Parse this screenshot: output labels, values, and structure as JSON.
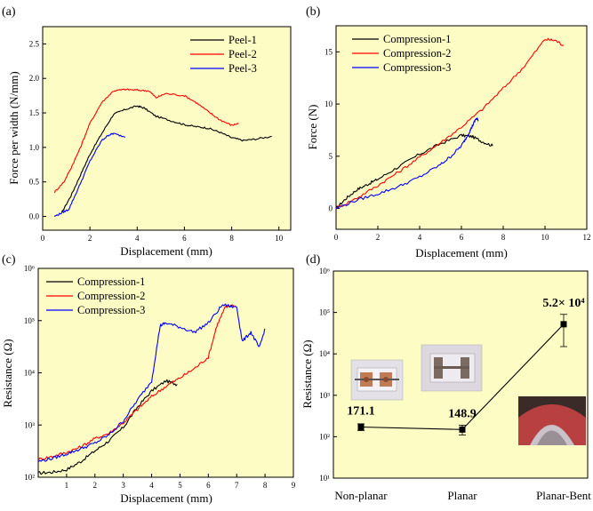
{
  "colors": {
    "panel_bg": "#fcfcc4",
    "black": "#000000",
    "red": "#ff0000",
    "blue": "#0000ff"
  },
  "chart_data": [
    {
      "panel": "(a)",
      "type": "line",
      "xlabel": "Displacement (mm)",
      "ylabel": "Force per width (N/mm)",
      "xlim": [
        0,
        10.5
      ],
      "ylim": [
        -0.2,
        2.75
      ],
      "xticks": [
        0,
        2,
        4,
        6,
        8,
        10
      ],
      "yticks": [
        0.0,
        0.5,
        1.0,
        1.5,
        2.0,
        2.5
      ],
      "ytick_labels": [
        "0.0",
        "0.5",
        "1.0",
        "1.5",
        "2.0",
        "2.5"
      ],
      "legend_position": "top-right",
      "series": [
        {
          "name": "Peel-1",
          "color": "#000000",
          "x": [
            0.8,
            1.2,
            1.6,
            2.0,
            2.5,
            3.0,
            3.5,
            4.0,
            4.3,
            4.8,
            5.5,
            6.0,
            6.5,
            7.0,
            7.5,
            8.0,
            8.5,
            9.0,
            9.7
          ],
          "y": [
            0.05,
            0.3,
            0.6,
            0.9,
            1.2,
            1.48,
            1.55,
            1.6,
            1.57,
            1.45,
            1.38,
            1.33,
            1.3,
            1.28,
            1.22,
            1.14,
            1.1,
            1.12,
            1.16
          ]
        },
        {
          "name": "Peel-2",
          "color": "#ff0000",
          "x": [
            0.5,
            0.9,
            1.2,
            1.6,
            2.0,
            2.5,
            3.0,
            3.5,
            4.0,
            4.5,
            4.8,
            5.2,
            6.0,
            6.5,
            7.0,
            7.5,
            8.0,
            8.3
          ],
          "y": [
            0.35,
            0.5,
            0.7,
            1.0,
            1.35,
            1.65,
            1.82,
            1.84,
            1.83,
            1.82,
            1.72,
            1.78,
            1.75,
            1.65,
            1.52,
            1.4,
            1.32,
            1.35
          ]
        },
        {
          "name": "Peel-3",
          "color": "#0000ff",
          "x": [
            0.5,
            0.8,
            1.1,
            1.5,
            2.0,
            2.5,
            2.8,
            3.0,
            3.5
          ],
          "y": [
            0.0,
            0.05,
            0.1,
            0.4,
            0.8,
            1.1,
            1.18,
            1.2,
            1.15
          ]
        }
      ]
    },
    {
      "panel": "(b)",
      "type": "line",
      "xlabel": "Displacement (mm)",
      "ylabel": "Force (N)",
      "xlim": [
        0,
        12
      ],
      "ylim": [
        -2,
        17.5
      ],
      "xticks": [
        0,
        2,
        4,
        6,
        8,
        10,
        12
      ],
      "yticks": [
        0,
        5,
        10,
        15
      ],
      "legend_position": "top-left",
      "series": [
        {
          "name": "Compression-1",
          "color": "#000000",
          "x": [
            0,
            0.5,
            1.0,
            1.5,
            2.0,
            3.0,
            4.0,
            5.0,
            6.0,
            6.5,
            7.0,
            7.5
          ],
          "y": [
            0,
            1.0,
            1.8,
            2.3,
            2.8,
            4.0,
            5.2,
            6.2,
            7.0,
            6.9,
            6.4,
            6.0
          ]
        },
        {
          "name": "Compression-2",
          "color": "#ff0000",
          "x": [
            0,
            1,
            2,
            3,
            4,
            5,
            6,
            7,
            8,
            9,
            10,
            10.5,
            10.9
          ],
          "y": [
            0,
            1.0,
            2.2,
            3.5,
            4.9,
            6.3,
            7.8,
            9.5,
            11.5,
            13.6,
            16.2,
            16.1,
            15.6
          ]
        },
        {
          "name": "Compression-3",
          "color": "#0000ff",
          "x": [
            0,
            1,
            2,
            3,
            4,
            5,
            5.5,
            6.0,
            6.3,
            6.5,
            6.7,
            6.8
          ],
          "y": [
            0,
            0.8,
            1.4,
            2.1,
            3.0,
            4.2,
            5.0,
            6.0,
            7.0,
            7.8,
            8.6,
            8.5
          ]
        }
      ]
    },
    {
      "panel": "(c)",
      "type": "line",
      "yscale": "log",
      "xlabel": "Displacement (mm)",
      "ylabel": "Resistance (Ω)",
      "xlim": [
        0,
        9
      ],
      "ylim": [
        100,
        1000000
      ],
      "xticks": [
        1,
        2,
        3,
        4,
        5,
        6,
        7,
        8,
        9
      ],
      "yticks": [
        100,
        1000,
        10000,
        100000,
        1000000
      ],
      "ytick_labels": [
        "10²",
        "10³",
        "10⁴",
        "10⁵",
        "10⁶"
      ],
      "legend_position": "top-left",
      "series": [
        {
          "name": "Compression-1",
          "color": "#000000",
          "x": [
            0,
            0.5,
            1.0,
            1.5,
            2.0,
            2.5,
            3.0,
            3.5,
            4.0,
            4.5,
            4.9
          ],
          "y": [
            120,
            125,
            140,
            200,
            320,
            500,
            900,
            2200,
            4500,
            7000,
            6000
          ]
        },
        {
          "name": "Compression-2",
          "color": "#ff0000",
          "x": [
            0,
            0.5,
            1.0,
            1.5,
            2.0,
            2.5,
            3.0,
            3.5,
            4.0,
            4.5,
            5.0,
            5.5,
            6.0,
            6.3,
            6.6,
            6.9
          ],
          "y": [
            220,
            250,
            300,
            380,
            550,
            700,
            1100,
            2000,
            3500,
            5500,
            8000,
            12000,
            20000,
            80000,
            180000,
            200000
          ]
        },
        {
          "name": "Compression-3",
          "color": "#0000ff",
          "x": [
            0,
            0.5,
            1.0,
            1.5,
            2.0,
            2.5,
            3.0,
            3.5,
            4.0,
            4.3,
            4.5,
            5.0,
            5.5,
            6.0,
            6.5,
            7.0,
            7.2,
            7.5,
            7.8,
            8.0
          ],
          "y": [
            200,
            230,
            280,
            350,
            450,
            650,
            1200,
            3000,
            7000,
            80000,
            90000,
            75000,
            60000,
            90000,
            200000,
            180000,
            40000,
            60000,
            30000,
            70000
          ]
        }
      ]
    },
    {
      "panel": "(d)",
      "type": "line",
      "yscale": "log",
      "xlabel": "",
      "ylabel": "Resistance (Ω)",
      "categories": [
        "Non-planar",
        "Planar",
        "Planar-Bent"
      ],
      "values": [
        171.1,
        148.9,
        52000
      ],
      "value_labels": [
        "171.1",
        "148.9",
        "5.2× 10⁴"
      ],
      "error_low": [
        140,
        110,
        15000
      ],
      "error_high": [
        205,
        190,
        90000
      ],
      "ylim": [
        10,
        1000000
      ],
      "yticks": [
        10,
        100,
        1000,
        10000,
        100000,
        1000000
      ],
      "ytick_labels": [
        "10¹",
        "10²",
        "10³",
        "10⁴",
        "10⁵",
        "10⁶"
      ],
      "color": "#000000"
    }
  ]
}
